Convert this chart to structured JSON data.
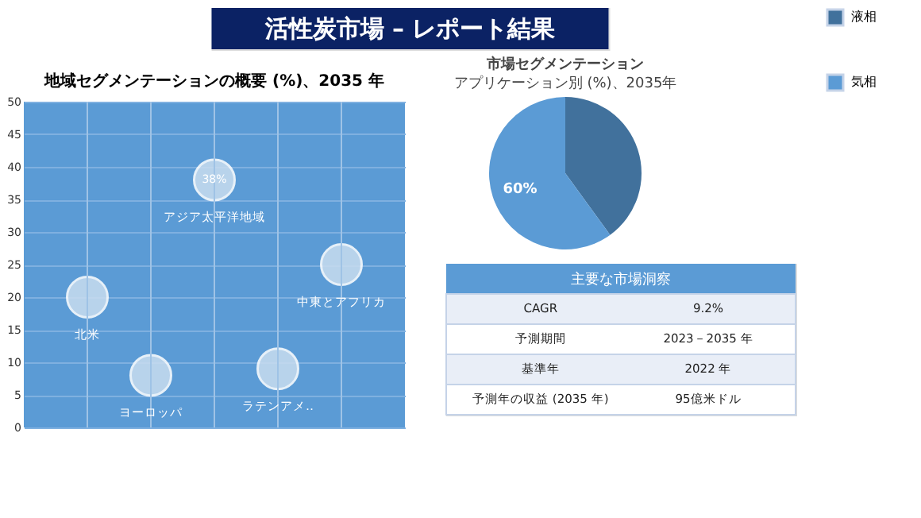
{
  "chart_data": [
    {
      "type": "other",
      "title": "活性炭市場 – レポート結果"
    },
    {
      "type": "bubble",
      "title": "地域セグメンテーションの概要 (%)、2035 年",
      "categories": [
        "北米",
        "ヨーロッパ",
        "アジア太平洋地域",
        "ラテンアメ‥",
        "中東とアフリカ"
      ],
      "values": [
        20,
        8,
        38,
        9,
        25
      ],
      "sizes": [
        1,
        1,
        1,
        1,
        1
      ],
      "value_labels": [
        null,
        null,
        "38%",
        null,
        null
      ],
      "color": "#c9ddf0",
      "ylim": [
        0,
        50
      ],
      "yticks": [
        0,
        5,
        10,
        15,
        20,
        25,
        30,
        35,
        40,
        45,
        50
      ],
      "grid": "y",
      "tick_labels": "y",
      "ref_lines": [
        {
          "axis": "x",
          "value": "北米",
          "color": "#9fc3e6"
        },
        {
          "axis": "x",
          "value": "ヨーロッパ",
          "color": "#9fc3e6"
        },
        {
          "axis": "x",
          "value": "アジア太平洋地域",
          "color": "#9fc3e6"
        },
        {
          "axis": "x",
          "value": "ラテンアメ‥",
          "color": "#9fc3e6"
        },
        {
          "axis": "x",
          "value": "中東とアフリカ",
          "color": "#9fc3e6"
        }
      ]
    },
    {
      "type": "pie",
      "title": "市場セグメンテーション",
      "subtitle": "アプリケーション別 (%)、2035年",
      "categories": [
        "液相",
        "気相"
      ],
      "values": [
        40,
        60
      ],
      "colors": [
        "#41719c",
        "#5b9bd5"
      ],
      "value_labels": [
        null,
        "60%"
      ],
      "legend": "right"
    },
    {
      "type": "other",
      "title": "主要な市場洞察",
      "annotations": [
        "CAGR",
        "9.2%",
        "予測期間",
        "2023－2035 年",
        "基準年",
        "2022 年",
        "予測年の収益 (2035 年)",
        "95億米ドル"
      ]
    }
  ]
}
